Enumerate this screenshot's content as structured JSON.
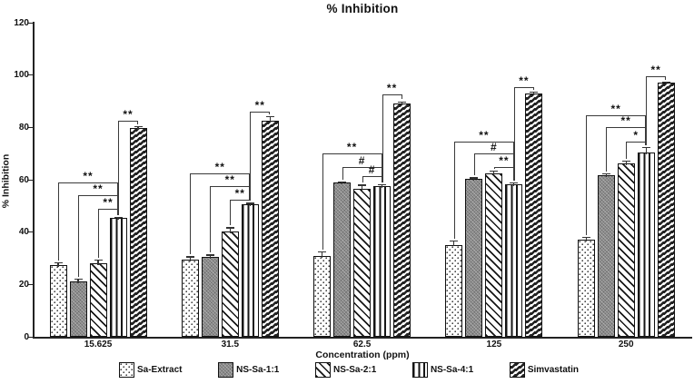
{
  "chart_data": {
    "type": "bar",
    "title": "% Inhibition",
    "xlabel": "Concentration (ppm)",
    "ylabel": "% Inhibition",
    "ylim": [
      0,
      120
    ],
    "ytick_step": 20,
    "ytick_labels": [
      "0",
      "20",
      "40",
      "60",
      "80",
      "100",
      "120"
    ],
    "grid": false,
    "legend_position": "bottom",
    "categories": [
      "15.625",
      "31.5",
      "62.5",
      "125",
      "250"
    ],
    "series": [
      {
        "name": "Sa-Extract",
        "pattern": "dots",
        "values": [
          27.3,
          29.5,
          30.8,
          35.2,
          37.0
        ],
        "errors": [
          1.2,
          1.2,
          1.8,
          1.5,
          1.3
        ]
      },
      {
        "name": "NS-Sa-1:1",
        "pattern": "solid-gray",
        "values": [
          21.3,
          30.6,
          58.9,
          60.4,
          61.9
        ],
        "errors": [
          0.8,
          0.8,
          0.5,
          0.5,
          0.5
        ]
      },
      {
        "name": "NS-Sa-2:1",
        "pattern": "diagonal-stripes",
        "values": [
          28.2,
          40.3,
          56.6,
          62.3,
          66.2
        ],
        "errors": [
          1.2,
          1.5,
          1.5,
          1.2,
          1.2
        ]
      },
      {
        "name": "NS-Sa-4:1",
        "pattern": "vertical-stripes",
        "values": [
          45.3,
          50.6,
          57.4,
          58.4,
          70.4
        ],
        "errors": [
          0.6,
          0.6,
          0.8,
          0.6,
          2.0
        ]
      },
      {
        "name": "Simvastatin",
        "pattern": "zigzag",
        "values": [
          79.6,
          82.7,
          89.2,
          93.0,
          97.1
        ],
        "errors": [
          1.0,
          1.5,
          0.8,
          0.8,
          0.5
        ]
      }
    ],
    "significance": [
      {
        "group": "15.625",
        "comparisons": [
          {
            "from": "Sa-Extract",
            "to": "NS-Sa-4:1",
            "label": "**",
            "line_y": 59
          },
          {
            "from": "NS-Sa-1:1",
            "to": "NS-Sa-4:1",
            "label": "**",
            "line_y": 54
          },
          {
            "from": "NS-Sa-2:1",
            "to": "NS-Sa-4:1",
            "label": "**",
            "line_y": 49
          },
          {
            "from": "NS-Sa-4:1",
            "to": "Simvastatin",
            "label": "**",
            "line_y": 82.5
          }
        ]
      },
      {
        "group": "31.5",
        "comparisons": [
          {
            "from": "Sa-Extract",
            "to": "NS-Sa-4:1",
            "label": "**",
            "line_y": 62.5
          },
          {
            "from": "NS-Sa-1:1",
            "to": "NS-Sa-4:1",
            "label": "**",
            "line_y": 57.5
          },
          {
            "from": "NS-Sa-2:1",
            "to": "NS-Sa-4:1",
            "label": "**",
            "line_y": 52.5
          },
          {
            "from": "NS-Sa-4:1",
            "to": "Simvastatin",
            "label": "**",
            "line_y": 86
          }
        ]
      },
      {
        "group": "62.5",
        "comparisons": [
          {
            "from": "Sa-Extract",
            "to": "NS-Sa-4:1",
            "label": "**",
            "line_y": 70
          },
          {
            "from": "NS-Sa-1:1",
            "to": "NS-Sa-4:1",
            "label": "#",
            "line_y": 65
          },
          {
            "from": "NS-Sa-2:1",
            "to": "NS-Sa-4:1",
            "label": "#",
            "line_y": 61.5
          },
          {
            "from": "NS-Sa-4:1",
            "to": "Simvastatin",
            "label": "**",
            "line_y": 92.5
          }
        ]
      },
      {
        "group": "125",
        "comparisons": [
          {
            "from": "Sa-Extract",
            "to": "NS-Sa-4:1",
            "label": "**",
            "line_y": 74.5
          },
          {
            "from": "NS-Sa-1:1",
            "to": "NS-Sa-4:1",
            "label": "#",
            "line_y": 70
          },
          {
            "from": "NS-Sa-2:1",
            "to": "NS-Sa-4:1",
            "label": "**",
            "line_y": 65
          },
          {
            "from": "NS-Sa-4:1",
            "to": "Simvastatin",
            "label": "**",
            "line_y": 95.5
          }
        ]
      },
      {
        "group": "250",
        "comparisons": [
          {
            "from": "Sa-Extract",
            "to": "NS-Sa-4:1",
            "label": "**",
            "line_y": 84.5
          },
          {
            "from": "NS-Sa-1:1",
            "to": "NS-Sa-4:1",
            "label": "**",
            "line_y": 80
          },
          {
            "from": "NS-Sa-2:1",
            "to": "NS-Sa-4:1",
            "label": "*",
            "line_y": 74.5
          },
          {
            "from": "NS-Sa-4:1",
            "to": "Simvastatin",
            "label": "**",
            "line_y": 99.5
          }
        ]
      }
    ]
  }
}
